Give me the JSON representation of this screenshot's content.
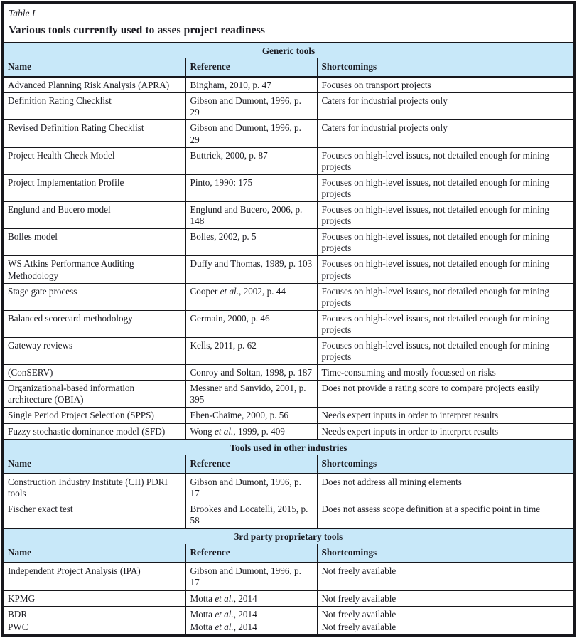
{
  "table_label": "Table I",
  "table_title": "Various tools currently used to asses project readiness",
  "columns": [
    "Name",
    "Reference",
    "Shortcomings"
  ],
  "colors": {
    "band_blue": "#c8e8f9",
    "border": "#17171c",
    "text": "#1b1b22"
  },
  "sections": [
    {
      "title": "Generic tools",
      "rows": [
        {
          "name": "Advanced Planning Risk Analysis (APRA)",
          "ref": [
            {
              "t": "Bingham, 2010, p. 47"
            }
          ],
          "short": "Focuses on transport projects"
        },
        {
          "name": "Definition Rating Checklist",
          "ref": [
            {
              "t": "Gibson and Dumont, 1996, p. 29"
            }
          ],
          "short": "Caters for industrial projects only"
        },
        {
          "name": "Revised Definition Rating Checklist",
          "ref": [
            {
              "t": "Gibson and Dumont, 1996, p. 29"
            }
          ],
          "short": "Caters for industrial projects only"
        },
        {
          "name": "Project Health Check Model",
          "ref": [
            {
              "t": "Buttrick, 2000, p. 87"
            }
          ],
          "short": "Focuses on high-level issues, not detailed enough for mining projects"
        },
        {
          "name": "Project Implementation Profile",
          "ref": [
            {
              "t": "Pinto, 1990: 175"
            }
          ],
          "short": "Focuses on high-level issues, not detailed enough for mining projects"
        },
        {
          "name": "Englund and Bucero model",
          "ref": [
            {
              "t": "Englund and Bucero, 2006, p. 148"
            }
          ],
          "short": "Focuses on high-level issues, not detailed enough for mining projects"
        },
        {
          "name": "Bolles model",
          "ref": [
            {
              "t": "Bolles, 2002, p. 5"
            }
          ],
          "short": "Focuses on high-level issues, not detailed enough for mining projects"
        },
        {
          "name": "WS Atkins Performance Auditing Methodology",
          "ref": [
            {
              "t": "Duffy and Thomas, 1989, p. 103"
            }
          ],
          "short": "Focuses on high-level issues, not detailed enough for mining projects"
        },
        {
          "name": "Stage gate process",
          "ref": [
            {
              "t": "Cooper "
            },
            {
              "t": "et al.",
              "i": true
            },
            {
              "t": ", 2002, p. 44"
            }
          ],
          "short": "Focuses on high-level issues, not detailed enough for mining projects"
        },
        {
          "name": "Balanced scorecard methodology",
          "ref": [
            {
              "t": "Germain, 2000, p. 46"
            }
          ],
          "short": "Focuses on high-level issues, not detailed enough for mining projects"
        },
        {
          "name": "Gateway reviews",
          "ref": [
            {
              "t": "Kells, 2011, p. 62"
            }
          ],
          "short": "Focuses on high-level issues, not detailed enough for mining projects"
        },
        {
          "name": "(ConSERV)",
          "ref": [
            {
              "t": "Conroy and Soltan, 1998, p. 187"
            }
          ],
          "short": "Time-consuming and mostly focussed on risks"
        },
        {
          "name": "Organizational-based information architecture (OBIA)",
          "ref": [
            {
              "t": "Messner and Sanvido, 2001, p. 395"
            }
          ],
          "short": "Does not provide a rating score to compare projects easily"
        },
        {
          "name": "Single Period Project Selection (SPPS)",
          "ref": [
            {
              "t": "Eben-Chaime, 2000, p. 56"
            }
          ],
          "short": "Needs expert inputs in order to interpret results"
        },
        {
          "name": "Fuzzy stochastic dominance model (SFD)",
          "ref": [
            {
              "t": "Wong "
            },
            {
              "t": "et al.",
              "i": true
            },
            {
              "t": ", 1999, p. 409"
            }
          ],
          "short": "Needs expert inputs in order to interpret results"
        }
      ]
    },
    {
      "title": "Tools used in other industries",
      "rows": [
        {
          "name": "Construction Industry Institute (CII) PDRI tools",
          "ref": [
            {
              "t": "Gibson and Dumont, 1996, p. 17"
            }
          ],
          "short": "Does not address all mining elements"
        },
        {
          "name": "Fischer exact test",
          "ref": [
            {
              "t": "Brookes and Locatelli, 2015, p. 58"
            }
          ],
          "short": "Does not assess scope definition at a specific point in time"
        }
      ]
    },
    {
      "title": "3rd party proprietary tools",
      "rows": [
        {
          "name": "Independent Project Analysis (IPA)",
          "ref": [
            {
              "t": "Gibson and Dumont, 1996, p. 17"
            }
          ],
          "short": "Not freely available"
        },
        {
          "name": "KPMG",
          "ref": [
            {
              "t": "Motta "
            },
            {
              "t": "et al.",
              "i": true
            },
            {
              "t": ", 2014"
            }
          ],
          "short": "Not freely available"
        },
        {
          "name": "BDR",
          "ref": [
            {
              "t": "Motta "
            },
            {
              "t": "et al.",
              "i": true
            },
            {
              "t": ", 2014"
            }
          ],
          "short": "Not freely available"
        },
        {
          "name": "PWC",
          "noline": true,
          "ref": [
            {
              "t": "Motta "
            },
            {
              "t": "et al.",
              "i": true
            },
            {
              "t": ", 2014"
            }
          ],
          "short": "Not freely available"
        }
      ]
    }
  ]
}
